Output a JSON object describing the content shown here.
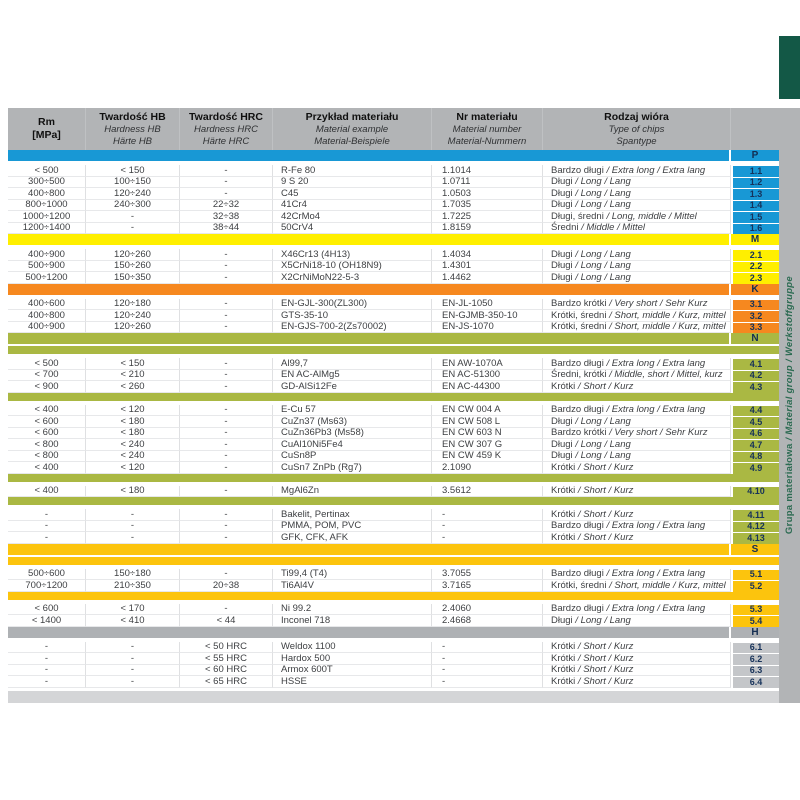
{
  "side_label": {
    "pl": "Grupa materiałowa",
    "rest": " / Material group / Werkstoffgruppe"
  },
  "colors": {
    "P": "#1898d5",
    "M": "#ffef00",
    "K": "#f6881f",
    "N": "#aab843",
    "S": "#fcc40d",
    "H_band": "#aeb1b4",
    "H_cell": "#c4c6c9",
    "header_gray": "#b2b4b6",
    "bottom_cap": "#d4d5d7",
    "strip_bg": "#b2b4b6",
    "strip_text": "#2c6b52",
    "tab": "#135846",
    "number_text": "#16325a"
  },
  "header": {
    "columns": [
      {
        "l1": "Rm",
        "l2": "[MPa]",
        "l3": "",
        "units": true
      },
      {
        "l1": "Twardość HB",
        "l2": "Hardness HB",
        "l3": "Härte HB"
      },
      {
        "l1": "Twardość HRC",
        "l2": "Hardness HRC",
        "l3": "Härte HRC"
      },
      {
        "l1": "Przykład materiału",
        "l2": "Material example",
        "l3": "Material-Beispiele"
      },
      {
        "l1": "Nr materiału",
        "l2": "Material number",
        "l3": "Material-Nummern"
      },
      {
        "l1": "Rodzaj wióra",
        "l2": "Type of chips",
        "l3": "Spantype"
      },
      {
        "l1": "",
        "l2": "",
        "l3": ""
      }
    ]
  },
  "groups": [
    {
      "letter": "P",
      "color": "#1898d5",
      "cell_color": "#1898d5",
      "lead_sep": false,
      "subgroups": [
        {
          "rows": [
            {
              "no": "1.1",
              "rm": "< 500",
              "hb": "< 150",
              "hrc": "-",
              "ex": "R-Fe 80",
              "nr": "1.1014",
              "ch": "Bardzo długi",
              "chi": " / Extra long / Extra lang"
            },
            {
              "no": "1.2",
              "rm": "300÷500",
              "hb": "100÷150",
              "hrc": "-",
              "ex": "9 S 20",
              "nr": "1.0711",
              "ch": "Długi",
              "chi": " / Long / Lang"
            },
            {
              "no": "1.3",
              "rm": "400÷800",
              "hb": "120÷240",
              "hrc": "-",
              "ex": "C45",
              "nr": "1.0503",
              "ch": "Długi",
              "chi": " / Long / Lang"
            },
            {
              "no": "1.4",
              "rm": "800÷1000",
              "hb": "240÷300",
              "hrc": "22÷32",
              "ex": "41Cr4",
              "nr": "1.7035",
              "ch": "Długi",
              "chi": " / Long / Lang"
            },
            {
              "no": "1.5",
              "rm": "1000÷1200",
              "hb": "-",
              "hrc": "32÷38",
              "ex": "42CrMo4",
              "nr": "1.7225",
              "ch": "Długi, średni",
              "chi": " / Long, middle / Mittel"
            },
            {
              "no": "1.6",
              "rm": "1200÷1400",
              "hb": "-",
              "hrc": "38÷44",
              "ex": "50CrV4",
              "nr": "1.8159",
              "ch": "Średni",
              "chi": " / Middle / Mittel"
            }
          ]
        }
      ]
    },
    {
      "letter": "M",
      "color": "#ffef00",
      "cell_color": "#ffef00",
      "lead_sep": false,
      "subgroups": [
        {
          "rows": [
            {
              "no": "2.1",
              "rm": "400÷900",
              "hb": "120÷260",
              "hrc": "-",
              "ex": "X46Cr13 (4H13)",
              "nr": "1.4034",
              "ch": "Długi",
              "chi": " / Long / Lang"
            },
            {
              "no": "2.2",
              "rm": "500÷900",
              "hb": "150÷260",
              "hrc": "-",
              "ex": "X5CrNi18-10 (OH18N9)",
              "nr": "1.4301",
              "ch": "Długi",
              "chi": " / Long / Lang"
            },
            {
              "no": "2.3",
              "rm": "500÷1200",
              "hb": "150÷350",
              "hrc": "-",
              "ex": "X2CrNiMoN22-5-3",
              "nr": "1.4462",
              "ch": "Długi",
              "chi": " / Long / Lang"
            }
          ]
        }
      ]
    },
    {
      "letter": "K",
      "color": "#f6881f",
      "cell_color": "#f6881f",
      "lead_sep": false,
      "subgroups": [
        {
          "rows": [
            {
              "no": "3.1",
              "rm": "400÷600",
              "hb": "120÷180",
              "hrc": "-",
              "ex": "EN-GJL-300(ZL300)",
              "nr": "EN-JL-1050",
              "ch": "Bardzo krótki",
              "chi": " / Very short / Sehr Kurz"
            },
            {
              "no": "3.2",
              "rm": "400÷800",
              "hb": "120÷240",
              "hrc": "-",
              "ex": "GTS-35-10",
              "nr": "EN-GJMB-350-10",
              "ch": "Krótki, średni",
              "chi": " / Short, middle / Kurz, mittel"
            },
            {
              "no": "3.3",
              "rm": "400÷900",
              "hb": "120÷260",
              "hrc": "-",
              "ex": "EN-GJS-700-2(Zs70002)",
              "nr": "EN-JS-1070",
              "ch": "Krótki, średni",
              "chi": " / Short, middle / Kurz, mittel"
            }
          ]
        }
      ]
    },
    {
      "letter": "N",
      "color": "#aab843",
      "cell_color": "#aab843",
      "lead_sep": true,
      "subgroups": [
        {
          "rows": [
            {
              "no": "4.1",
              "rm": "< 500",
              "hb": "< 150",
              "hrc": "-",
              "ex": "Al99,7",
              "nr": "EN AW-1070A",
              "ch": "Bardzo długi",
              "chi": " / Extra long / Extra lang"
            },
            {
              "no": "4.2",
              "rm": "< 700",
              "hb": "< 210",
              "hrc": "-",
              "ex": "EN AC-AlMg5",
              "nr": "EN AC-51300",
              "ch": "Średni, krótki",
              "chi": " / Middle, short / Mittel, kurz"
            },
            {
              "no": "4.3",
              "rm": "< 900",
              "hb": "< 260",
              "hrc": "-",
              "ex": "GD-AlSi12Fe",
              "nr": "EN AC-44300",
              "ch": "Krótki",
              "chi": " / Short / Kurz"
            }
          ]
        },
        {
          "rows": [
            {
              "no": "4.4",
              "rm": "< 400",
              "hb": "< 120",
              "hrc": "-",
              "ex": "E-Cu 57",
              "nr": "EN CW 004 A",
              "ch": "Bardzo długi",
              "chi": " / Extra long / Extra lang"
            },
            {
              "no": "4.5",
              "rm": "< 600",
              "hb": "< 180",
              "hrc": "-",
              "ex": "CuZn37 (Ms63)",
              "nr": "EN CW 508 L",
              "ch": "Długi",
              "chi": " / Long / Lang"
            },
            {
              "no": "4.6",
              "rm": "< 600",
              "hb": "< 180",
              "hrc": "-",
              "ex": "CuZn36Pb3 (Ms58)",
              "nr": "EN CW 603 N",
              "ch": "Bardzo krótki",
              "chi": " / Very short / Sehr Kurz"
            },
            {
              "no": "4.7",
              "rm": "< 800",
              "hb": "< 240",
              "hrc": "-",
              "ex": "CuAl10Ni5Fe4",
              "nr": "EN CW 307 G",
              "ch": "Długi",
              "chi": " / Long / Lang"
            },
            {
              "no": "4.8",
              "rm": "< 800",
              "hb": "< 240",
              "hrc": "-",
              "ex": "CuSn8P",
              "nr": "EN CW 459 K",
              "ch": "Długi",
              "chi": " / Long / Lang"
            },
            {
              "no": "4.9",
              "rm": "< 400",
              "hb": "< 120",
              "hrc": "-",
              "ex": "CuSn7 ZnPb (Rg7)",
              "nr": "2.1090",
              "ch": "Krótki",
              "chi": " / Short / Kurz"
            }
          ]
        },
        {
          "rows": [
            {
              "no": "4.10",
              "rm": "< 400",
              "hb": "< 180",
              "hrc": "-",
              "ex": "MgAl6Zn",
              "nr": "3.5612",
              "ch": "Krótki",
              "chi": " / Short / Kurz"
            }
          ]
        },
        {
          "rows": [
            {
              "no": "4.11",
              "rm": "-",
              "hb": "-",
              "hrc": "-",
              "ex": "Bakelit, Pertinax",
              "nr": "-",
              "ch": "Krótki",
              "chi": " / Short / Kurz"
            },
            {
              "no": "4.12",
              "rm": "-",
              "hb": "-",
              "hrc": "-",
              "ex": "PMMA, POM, PVC",
              "nr": "-",
              "ch": "Bardzo długi",
              "chi": " / Extra long / Extra lang"
            },
            {
              "no": "4.13",
              "rm": "-",
              "hb": "-",
              "hrc": "-",
              "ex": "GFK, CFK, AFK",
              "nr": "-",
              "ch": "Krótki",
              "chi": " / Short / Kurz"
            }
          ]
        }
      ]
    },
    {
      "letter": "S",
      "color": "#fcc40d",
      "cell_color": "#fcc40d",
      "lead_sep": true,
      "subgroups": [
        {
          "rows": [
            {
              "no": "5.1",
              "rm": "500÷600",
              "hb": "150÷180",
              "hrc": "-",
              "ex": "Ti99,4 (T4)",
              "nr": "3.7055",
              "ch": "Bardzo długi",
              "chi": " / Extra long / Extra lang"
            },
            {
              "no": "5.2",
              "rm": "700÷1200",
              "hb": "210÷350",
              "hrc": "20÷38",
              "ex": "Ti6Al4V",
              "nr": "3.7165",
              "ch": "Krótki, średni",
              "chi": " / Short, middle / Kurz, mittel"
            }
          ]
        },
        {
          "rows": [
            {
              "no": "5.3",
              "rm": "< 600",
              "hb": "< 170",
              "hrc": "-",
              "ex": "Ni 99.2",
              "nr": "2.4060",
              "ch": "Bardzo długi",
              "chi": " / Extra long / Extra lang"
            },
            {
              "no": "5.4",
              "rm": "< 1400",
              "hb": "< 410",
              "hrc": "< 44",
              "ex": "Inconel 718",
              "nr": "2.4668",
              "ch": "Długi",
              "chi": " / Long / Lang"
            }
          ]
        }
      ]
    },
    {
      "letter": "H",
      "color": "#aeb1b4",
      "cell_color": "#c4c6c9",
      "lead_sep": false,
      "subgroups": [
        {
          "rows": [
            {
              "no": "6.1",
              "rm": "-",
              "hb": "-",
              "hrc": "< 50 HRC",
              "ex": "Weldox 1100",
              "nr": "-",
              "ch": "Krótki",
              "chi": " / Short / Kurz"
            },
            {
              "no": "6.2",
              "rm": "-",
              "hb": "-",
              "hrc": "< 55 HRC",
              "ex": "Hardox 500",
              "nr": "-",
              "ch": "Krótki",
              "chi": " / Short / Kurz"
            },
            {
              "no": "6.3",
              "rm": "-",
              "hb": "-",
              "hrc": "< 60 HRC",
              "ex": "Armox 600T",
              "nr": "-",
              "ch": "Krótki",
              "chi": " / Short / Kurz"
            },
            {
              "no": "6.4",
              "rm": "-",
              "hb": "-",
              "hrc": "< 65 HRC",
              "ex": "HSSE",
              "nr": "-",
              "ch": "Krótki",
              "chi": " / Short / Kurz"
            }
          ]
        }
      ]
    }
  ]
}
